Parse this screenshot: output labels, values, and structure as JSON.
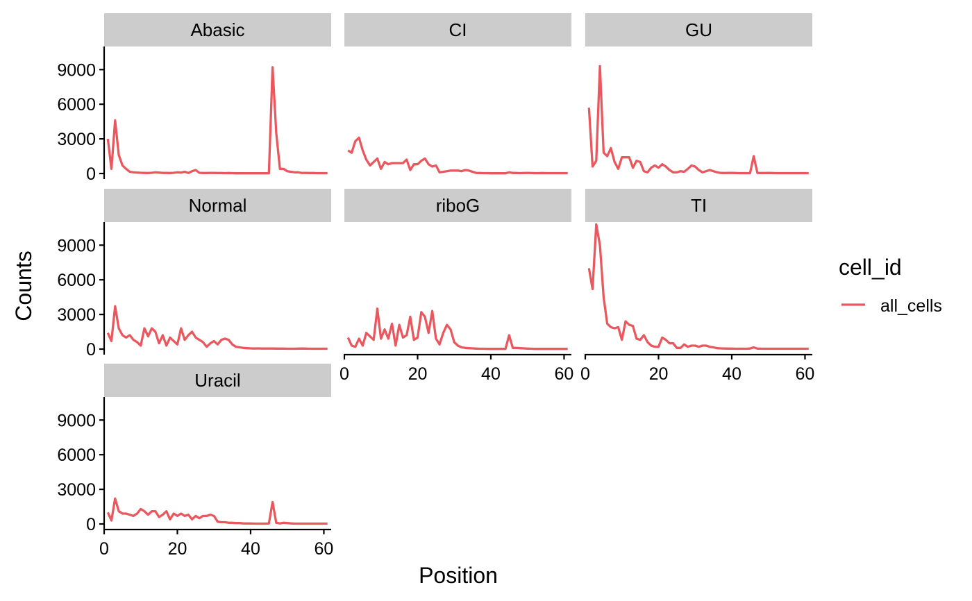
{
  "chart_data": {
    "type": "line",
    "layout": "facet_wrap",
    "xlabel": "Position",
    "ylabel": "Counts",
    "xlim": [
      0,
      62
    ],
    "ylim": [
      0,
      11000
    ],
    "x_ticks": [
      0,
      20,
      40,
      60
    ],
    "y_ticks": [
      0,
      3000,
      6000,
      9000
    ],
    "legend": {
      "title": "cell_id",
      "position": "right",
      "entries": [
        {
          "name": "all_cells",
          "color": "#E9585E"
        }
      ]
    },
    "series_color": "#E9585E",
    "x": [
      1,
      2,
      3,
      4,
      5,
      6,
      7,
      8,
      9,
      10,
      11,
      12,
      13,
      14,
      15,
      16,
      17,
      18,
      19,
      20,
      21,
      22,
      23,
      24,
      25,
      26,
      27,
      28,
      29,
      30,
      31,
      32,
      33,
      34,
      35,
      36,
      37,
      38,
      39,
      40,
      41,
      42,
      43,
      44,
      45,
      46,
      47,
      48,
      49,
      50,
      51,
      52,
      53,
      54,
      55,
      56,
      57,
      58,
      59,
      60,
      61
    ],
    "panels": [
      {
        "name": "Abasic",
        "values": [
          3000,
          400,
          4600,
          1600,
          700,
          400,
          150,
          100,
          80,
          60,
          50,
          40,
          60,
          100,
          80,
          50,
          50,
          40,
          60,
          100,
          80,
          150,
          50,
          200,
          300,
          60,
          40,
          40,
          50,
          50,
          40,
          40,
          30,
          40,
          30,
          20,
          20,
          20,
          20,
          20,
          20,
          20,
          20,
          20,
          20,
          9200,
          3500,
          400,
          400,
          200,
          150,
          100,
          100,
          50,
          50,
          40,
          40,
          30,
          30,
          30,
          30
        ]
      },
      {
        "name": "CI",
        "values": [
          2000,
          1800,
          2800,
          3100,
          2000,
          1200,
          700,
          1000,
          1300,
          400,
          1000,
          800,
          900,
          900,
          900,
          900,
          1200,
          300,
          800,
          800,
          1100,
          1300,
          800,
          600,
          700,
          100,
          150,
          200,
          250,
          250,
          250,
          200,
          300,
          250,
          150,
          50,
          40,
          30,
          30,
          20,
          20,
          20,
          20,
          20,
          100,
          50,
          40,
          30,
          40,
          50,
          40,
          30,
          30,
          40,
          30,
          30,
          30,
          30,
          30,
          30,
          30
        ]
      },
      {
        "name": "GU",
        "values": [
          5700,
          600,
          1100,
          9300,
          1800,
          1500,
          2200,
          1000,
          400,
          1400,
          1400,
          1400,
          500,
          1100,
          1000,
          200,
          100,
          500,
          700,
          500,
          800,
          600,
          300,
          100,
          100,
          200,
          150,
          400,
          700,
          600,
          300,
          100,
          200,
          300,
          200,
          100,
          50,
          40,
          50,
          50,
          40,
          30,
          30,
          30,
          30,
          1500,
          50,
          40,
          40,
          50,
          40,
          30,
          30,
          30,
          30,
          30,
          30,
          30,
          30,
          30,
          30
        ]
      },
      {
        "name": "Normal",
        "values": [
          1400,
          700,
          3700,
          1800,
          1200,
          1000,
          1200,
          800,
          600,
          300,
          1800,
          1100,
          1800,
          1500,
          500,
          1200,
          300,
          1000,
          700,
          400,
          1800,
          800,
          1200,
          1500,
          1000,
          800,
          600,
          200,
          500,
          700,
          400,
          800,
          900,
          800,
          400,
          200,
          150,
          100,
          80,
          60,
          50,
          60,
          50,
          50,
          50,
          50,
          40,
          40,
          40,
          30,
          30,
          30,
          40,
          50,
          40,
          30,
          30,
          30,
          30,
          30,
          30
        ]
      },
      {
        "name": "riboG",
        "values": [
          1000,
          300,
          200,
          900,
          300,
          1400,
          1100,
          800,
          3500,
          900,
          1700,
          900,
          2200,
          300,
          2100,
          1000,
          1200,
          2800,
          800,
          1000,
          3200,
          2800,
          1400,
          3300,
          900,
          400,
          1400,
          2100,
          1700,
          600,
          300,
          150,
          100,
          80,
          60,
          40,
          30,
          30,
          20,
          20,
          20,
          20,
          20,
          20,
          1200,
          100,
          100,
          80,
          60,
          40,
          30,
          20,
          20,
          20,
          20,
          20,
          20,
          20,
          20,
          20,
          20
        ]
      },
      {
        "name": "TI",
        "values": [
          7000,
          5200,
          10800,
          9000,
          4500,
          2200,
          1900,
          1800,
          1900,
          800,
          2400,
          2100,
          2000,
          900,
          800,
          1200,
          600,
          300,
          200,
          200,
          1000,
          800,
          500,
          500,
          100,
          100,
          400,
          200,
          300,
          300,
          200,
          300,
          300,
          200,
          150,
          80,
          60,
          50,
          40,
          40,
          30,
          30,
          30,
          30,
          50,
          150,
          40,
          30,
          30,
          30,
          30,
          30,
          30,
          30,
          30,
          30,
          30,
          30,
          30,
          30,
          30
        ]
      },
      {
        "name": "Uracil",
        "values": [
          1000,
          300,
          2200,
          1100,
          900,
          900,
          800,
          700,
          900,
          1300,
          1100,
          800,
          1100,
          1100,
          600,
          800,
          1100,
          400,
          900,
          700,
          900,
          700,
          800,
          400,
          700,
          500,
          700,
          700,
          800,
          700,
          200,
          150,
          150,
          100,
          100,
          80,
          80,
          50,
          40,
          40,
          30,
          30,
          30,
          30,
          40,
          1900,
          100,
          50,
          100,
          80,
          50,
          30,
          30,
          30,
          30,
          30,
          30,
          30,
          30,
          30,
          30
        ]
      }
    ]
  }
}
